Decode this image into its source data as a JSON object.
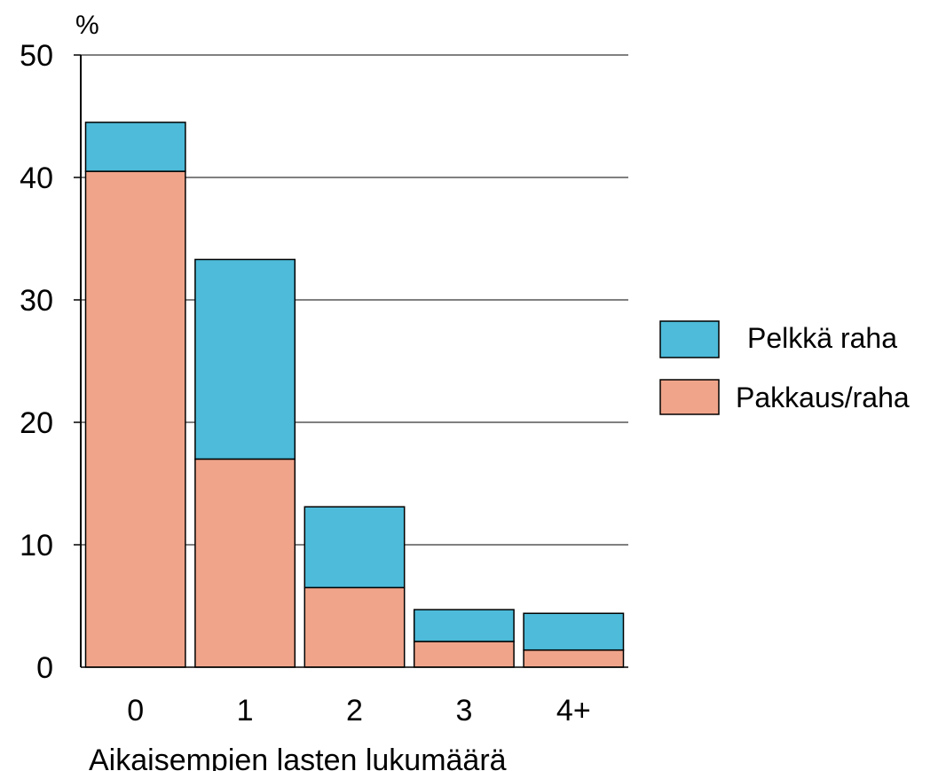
{
  "chart_data": {
    "type": "bar",
    "stacked": true,
    "categories": [
      "0",
      "1",
      "2",
      "3",
      "4+"
    ],
    "series": [
      {
        "name": "Pakkaus/raha",
        "color": "#f0a48a",
        "values": [
          40.5,
          17.0,
          6.5,
          2.1,
          1.4
        ]
      },
      {
        "name": "Pelkkä raha",
        "color": "#4dbbd9",
        "values": [
          4.0,
          16.3,
          6.6,
          2.6,
          3.0
        ]
      }
    ],
    "ylabel": "%",
    "xlabel": "Aikaisempien lasten lukumäärä",
    "ylim": [
      0,
      50
    ],
    "yticks": [
      "0",
      "10",
      "20",
      "30",
      "40",
      "50"
    ],
    "grid": true,
    "legend_position": "right",
    "legend": [
      "Pelkkä raha",
      "Pakkaus/raha"
    ]
  }
}
